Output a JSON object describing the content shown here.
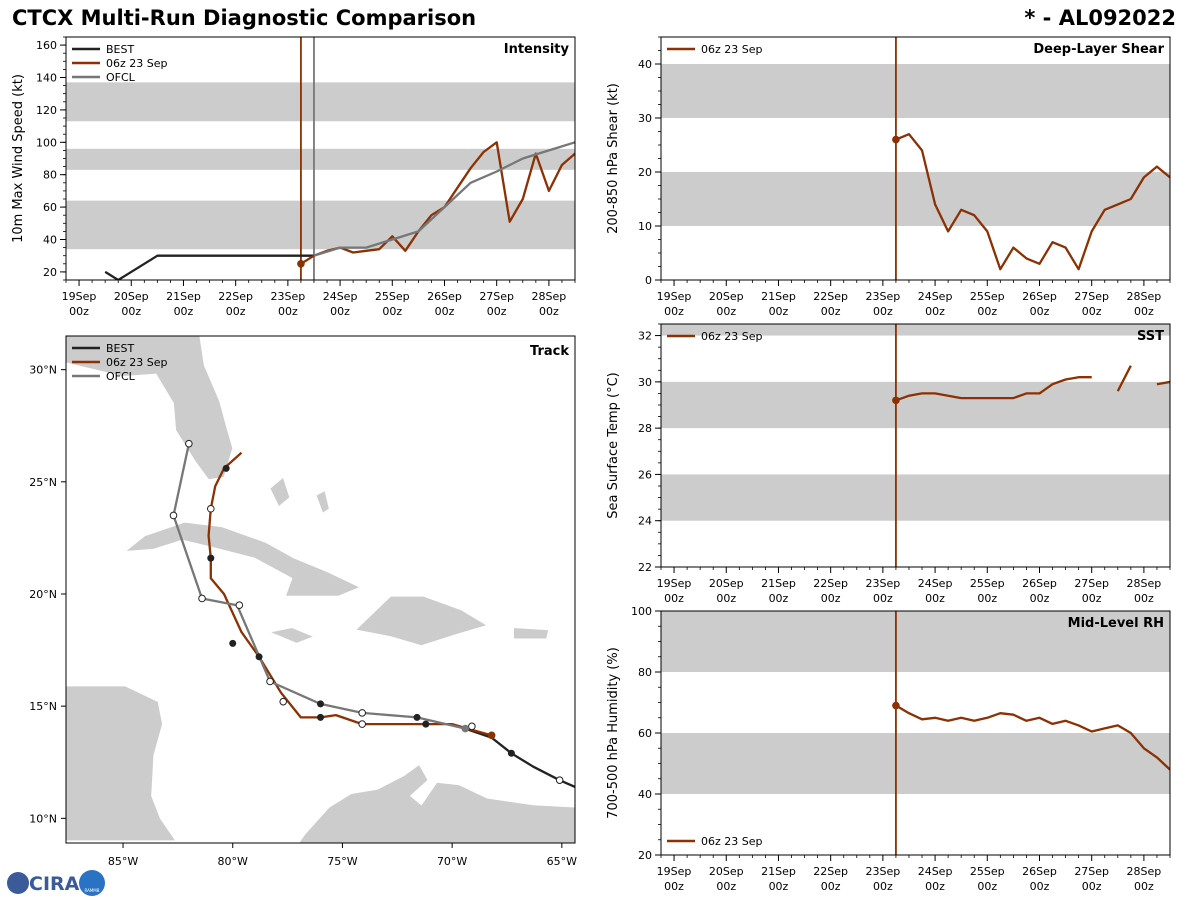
{
  "header": {
    "title_left": "CTCX Multi-Run Diagnostic Comparison",
    "title_right": "* - AL092022"
  },
  "colors": {
    "best": "#222222",
    "run": "#8b3103",
    "ofcl": "#777777",
    "band": "#cccccc",
    "land": "#cccccc"
  },
  "time_axis": {
    "ticks": [
      {
        "top": "19Sep",
        "bottom": "00z"
      },
      {
        "top": "20Sep",
        "bottom": "00z"
      },
      {
        "top": "21Sep",
        "bottom": "00z"
      },
      {
        "top": "22Sep",
        "bottom": "00z"
      },
      {
        "top": "23Sep",
        "bottom": "00z"
      },
      {
        "top": "24Sep",
        "bottom": "00z"
      },
      {
        "top": "25Sep",
        "bottom": "00z"
      },
      {
        "top": "26Sep",
        "bottom": "00z"
      },
      {
        "top": "27Sep",
        "bottom": "00z"
      },
      {
        "top": "28Sep",
        "bottom": "00z"
      }
    ],
    "range_days": [
      18.75,
      28.5
    ],
    "init_day": 23.25,
    "ofcl_init_day": 23.5
  },
  "chart_data": [
    {
      "id": "intensity",
      "type": "line",
      "title": "Intensity",
      "ylabel": "10m Max Wind Speed (kt)",
      "ylim": [
        15,
        165
      ],
      "yticks": [
        20,
        40,
        60,
        80,
        100,
        120,
        140,
        160
      ],
      "bands": [
        [
          34,
          64
        ],
        [
          83,
          96
        ],
        [
          113,
          137
        ]
      ],
      "legend": [
        "BEST",
        "06z 23 Sep",
        "OFCL"
      ],
      "series": [
        {
          "name": "BEST",
          "x": [
            19.5,
            19.75,
            20.5,
            21,
            22,
            23,
            23.25,
            23.5
          ],
          "y": [
            20,
            15,
            30,
            30,
            30,
            30,
            30,
            30
          ]
        },
        {
          "name": "06z 23 Sep",
          "x": [
            23.25,
            23.5,
            23.75,
            24,
            24.25,
            24.5,
            24.75,
            25,
            25.25,
            25.5,
            25.75,
            26,
            26.25,
            26.5,
            26.75,
            27,
            27.25,
            27.5,
            27.75,
            28,
            28.25,
            28.5
          ],
          "y": [
            25,
            30,
            33,
            35,
            32,
            33,
            34,
            42,
            33,
            45,
            55,
            60,
            72,
            84,
            94,
            100,
            51,
            65,
            93,
            70,
            86,
            93
          ]
        },
        {
          "name": "OFCL",
          "x": [
            23.5,
            24,
            24.5,
            25,
            25.5,
            26,
            26.5,
            27,
            27.5,
            28,
            28.5
          ],
          "y": [
            30,
            35,
            35,
            40,
            45,
            60,
            75,
            82,
            90,
            95,
            100
          ]
        }
      ]
    },
    {
      "id": "shear",
      "type": "line",
      "title": "Deep-Layer Shear",
      "ylabel": "200-850 hPa Shear (kt)",
      "ylim": [
        0,
        45
      ],
      "yticks": [
        0,
        10,
        20,
        30,
        40
      ],
      "bands": [
        [
          10,
          20
        ],
        [
          30,
          40
        ]
      ],
      "legend": [
        "06z 23 Sep"
      ],
      "series": [
        {
          "name": "06z 23 Sep",
          "x": [
            23.25,
            23.5,
            23.75,
            24,
            24.25,
            24.5,
            24.75,
            25,
            25.25,
            25.5,
            25.75,
            26,
            26.25,
            26.5,
            26.75,
            27,
            27.25,
            27.5,
            27.75,
            28,
            28.25,
            28.5
          ],
          "y": [
            26,
            27,
            24,
            14,
            9,
            13,
            12,
            9,
            2,
            6,
            4,
            3,
            7,
            6,
            2,
            9,
            13,
            14,
            15,
            19,
            21,
            19
          ]
        }
      ]
    },
    {
      "id": "sst",
      "type": "line",
      "title": "SST",
      "ylabel": "Sea Surface Temp (°C)",
      "ylim": [
        22,
        32.5
      ],
      "yticks": [
        22,
        24,
        26,
        28,
        30,
        32
      ],
      "bands": [
        [
          24,
          26
        ],
        [
          28,
          30
        ],
        [
          32,
          34
        ]
      ],
      "legend": [
        "06z 23 Sep"
      ],
      "series": [
        {
          "name": "06z 23 Sep",
          "segments": [
            {
              "x": [
                23.25,
                23.5,
                23.75,
                24,
                24.25,
                24.5,
                24.75,
                25,
                25.25,
                25.5,
                25.75,
                26,
                26.25,
                26.5,
                26.75,
                27
              ],
              "y": [
                29.2,
                29.4,
                29.5,
                29.5,
                29.4,
                29.3,
                29.3,
                29.3,
                29.3,
                29.3,
                29.5,
                29.5,
                29.9,
                30.1,
                30.2,
                30.2
              ]
            },
            {
              "x": [
                27.5,
                27.75
              ],
              "y": [
                29.6,
                30.7
              ]
            },
            {
              "x": [
                28.25,
                28.5
              ],
              "y": [
                29.9,
                30.0
              ]
            }
          ]
        }
      ]
    },
    {
      "id": "rh",
      "type": "line",
      "title": "Mid-Level RH",
      "ylabel": "700-500 hPa Humidity (%)",
      "ylim": [
        20,
        100
      ],
      "yticks": [
        20,
        40,
        60,
        80,
        100
      ],
      "bands": [
        [
          40,
          60
        ],
        [
          80,
          100
        ]
      ],
      "legend": [
        "06z 23 Sep"
      ],
      "legend_position": "bottom-left",
      "series": [
        {
          "name": "06z 23 Sep",
          "x": [
            23.25,
            23.5,
            23.75,
            24,
            24.25,
            24.5,
            24.75,
            25,
            25.25,
            25.5,
            25.75,
            26,
            26.25,
            26.5,
            26.75,
            27,
            27.25,
            27.5,
            27.75,
            28,
            28.25,
            28.5
          ],
          "y": [
            69,
            66.5,
            64.5,
            65,
            64,
            65,
            64,
            65,
            66.5,
            66,
            64,
            65,
            63,
            64,
            62.5,
            60.5,
            61.5,
            62.5,
            60,
            55,
            52,
            48
          ]
        }
      ]
    },
    {
      "id": "track",
      "type": "scatter",
      "title": "Track",
      "legend": [
        "BEST",
        "06z 23 Sep",
        "OFCL"
      ],
      "lon_range": [
        -87.6,
        -64.4
      ],
      "lat_range": [
        8.9,
        31.5
      ],
      "lon_ticks": [
        -85,
        -80,
        -75,
        -70,
        -65
      ],
      "lon_tick_labels": [
        "85°W",
        "80°W",
        "75°W",
        "70°W",
        "65°W"
      ],
      "lat_ticks": [
        10,
        15,
        20,
        25,
        30
      ],
      "lat_tick_labels": [
        "10°N",
        "15°N",
        "20°N",
        "25°N",
        "30°N"
      ],
      "series": [
        {
          "name": "BEST",
          "lon": [
            -64.4,
            -65.1,
            -66.3,
            -67.3,
            -68.2,
            -69.4
          ],
          "lat": [
            11.4,
            11.7,
            12.3,
            12.9,
            13.6,
            14.0
          ],
          "markers": [
            -65.1,
            -67.3
          ]
        },
        {
          "name": "06z 23 Sep",
          "lon": [
            -68.2,
            -69.3,
            -70.0,
            -71.2,
            -72.5,
            -74.1,
            -75.3,
            -76.0,
            -76.9,
            -77.8,
            -78.8,
            -79.6,
            -80.4,
            -81.0,
            -81.0,
            -81.1,
            -81.0,
            -80.8,
            -80.4,
            -79.6
          ],
          "lat": [
            13.7,
            14.0,
            14.2,
            14.2,
            14.2,
            14.2,
            14.6,
            14.5,
            14.5,
            15.6,
            17.2,
            18.3,
            20.0,
            20.7,
            21.6,
            22.6,
            23.8,
            24.8,
            25.6,
            26.3
          ],
          "filled": [
            [
              -68.2,
              13.7
            ],
            [
              -71.2,
              14.2
            ],
            [
              -76.0,
              14.5
            ],
            [
              -78.8,
              17.2
            ],
            [
              -80.0,
              17.8
            ],
            [
              -81.0,
              21.6
            ],
            [
              -80.3,
              25.6
            ]
          ],
          "hollow": [
            [
              -74.1,
              14.2
            ],
            [
              -77.7,
              15.2
            ],
            [
              -81.0,
              23.8
            ]
          ]
        },
        {
          "name": "OFCL",
          "lon": [
            -69.4,
            -71.6,
            -74.1,
            -76.0,
            -78.3,
            -79.8,
            -81.4,
            -82.7,
            -82.0
          ],
          "lat": [
            14.0,
            14.5,
            14.7,
            15.1,
            16.1,
            19.5,
            19.8,
            23.5,
            26.7
          ],
          "hollow": [
            [
              -69.1,
              14.1
            ],
            [
              -74.1,
              14.7
            ],
            [
              -78.3,
              16.1
            ],
            [
              -79.7,
              19.5
            ],
            [
              -81.4,
              19.8
            ],
            [
              -82.7,
              23.5
            ],
            [
              -82.0,
              26.7
            ],
            [
              -65.1,
              11.7
            ]
          ],
          "filled": [
            [
              -71.6,
              14.5
            ],
            [
              -76.0,
              15.1
            ]
          ]
        }
      ]
    }
  ],
  "logo": {
    "text": "CIRA",
    "emblem": "RAMMB"
  }
}
